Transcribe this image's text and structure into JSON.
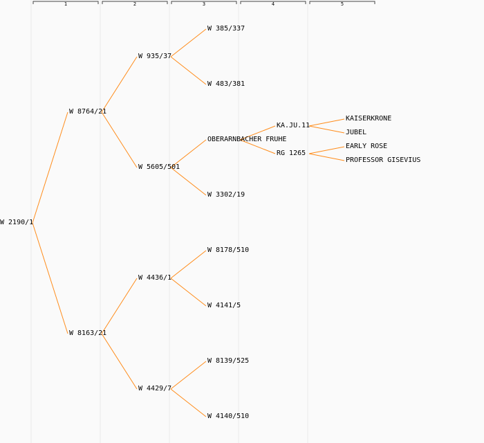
{
  "generations": [
    "1",
    "2",
    "3",
    "4",
    "5"
  ],
  "colors": {
    "line": "#ff8c1a",
    "divider": "#eaeaea",
    "header": "#444444"
  },
  "nodes": [
    {
      "id": "root",
      "label": "W 2190/1",
      "gen": 0,
      "parent": null
    },
    {
      "id": "n1",
      "label": "W 8764/21",
      "gen": 1,
      "parent": "root"
    },
    {
      "id": "n2",
      "label": "W 8163/21",
      "gen": 1,
      "parent": "root"
    },
    {
      "id": "n11",
      "label": "W 935/37",
      "gen": 2,
      "parent": "n1"
    },
    {
      "id": "n12",
      "label": "W 5605/501",
      "gen": 2,
      "parent": "n1"
    },
    {
      "id": "n21",
      "label": "W 4436/1",
      "gen": 2,
      "parent": "n2"
    },
    {
      "id": "n22",
      "label": "W 4429/7",
      "gen": 2,
      "parent": "n2"
    },
    {
      "id": "n111",
      "label": "W 385/337",
      "gen": 3,
      "parent": "n11"
    },
    {
      "id": "n112",
      "label": "W 483/381",
      "gen": 3,
      "parent": "n11"
    },
    {
      "id": "n121",
      "label": "OBERARNBACHER FRUHE",
      "gen": 3,
      "parent": "n12"
    },
    {
      "id": "n122",
      "label": "W 3302/19",
      "gen": 3,
      "parent": "n12"
    },
    {
      "id": "n211",
      "label": "W 8178/510",
      "gen": 3,
      "parent": "n21"
    },
    {
      "id": "n212",
      "label": "W 4141/5",
      "gen": 3,
      "parent": "n21"
    },
    {
      "id": "n221",
      "label": "W 8139/525",
      "gen": 3,
      "parent": "n22"
    },
    {
      "id": "n222",
      "label": "W 4140/510",
      "gen": 3,
      "parent": "n22"
    },
    {
      "id": "n1211",
      "label": "KA.JU.11",
      "gen": 4,
      "parent": "n121"
    },
    {
      "id": "n1212",
      "label": "RG 1265",
      "gen": 4,
      "parent": "n121"
    },
    {
      "id": "n12111",
      "label": "KAISERKRONE",
      "gen": 5,
      "parent": "n1211"
    },
    {
      "id": "n12112",
      "label": "JUBEL",
      "gen": 5,
      "parent": "n1211"
    },
    {
      "id": "n12121",
      "label": "EARLY ROSE",
      "gen": 5,
      "parent": "n1212"
    },
    {
      "id": "n12122",
      "label": "PROFESSOR GISEVIUS",
      "gen": 5,
      "parent": "n1212"
    }
  ]
}
